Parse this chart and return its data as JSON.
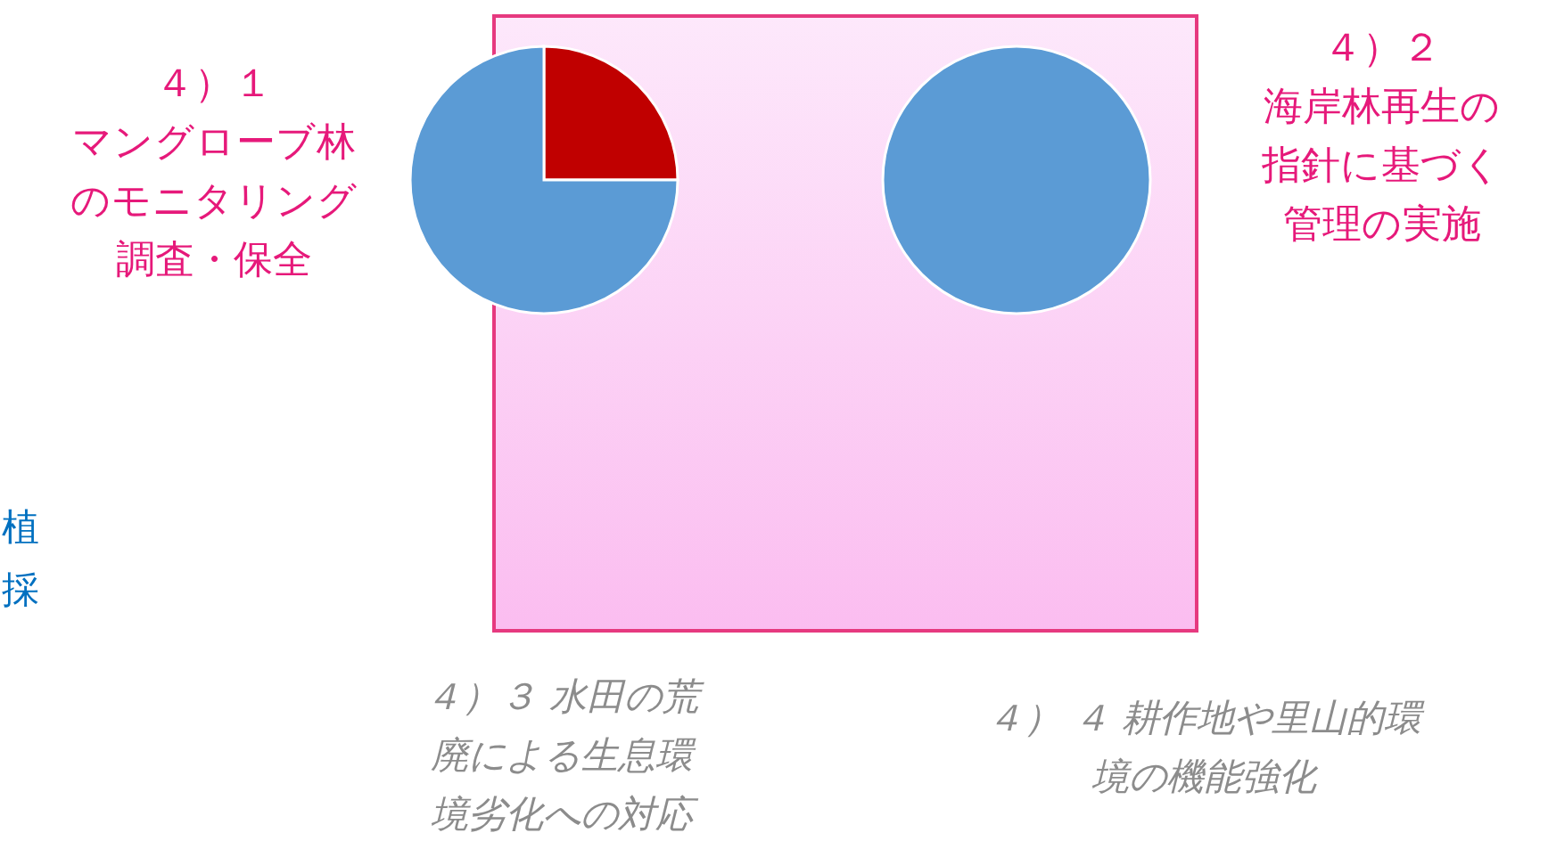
{
  "chart_data": [
    {
      "type": "pie",
      "title": "４）１",
      "subtitle": "マングローブ林のモニタリング調査・保全",
      "categories": [
        null,
        null
      ],
      "values": [
        25,
        75
      ],
      "colors": [
        "#c00000",
        "#5b9bd5"
      ]
    },
    {
      "type": "pie",
      "title": "４）２",
      "subtitle": "海岸林再生の指針に基づく管理の実施",
      "categories": [
        null,
        null
      ],
      "values": [
        0,
        100
      ],
      "colors": [
        "#c00000",
        "#5b9bd5"
      ]
    },
    {
      "type": "other",
      "annotations": [
        "４）３ 水田の荒廃による生息環境劣化への対応",
        "４） ４ 耕作地や里山的環境の機能強化",
        "植",
        "採"
      ]
    }
  ]
}
